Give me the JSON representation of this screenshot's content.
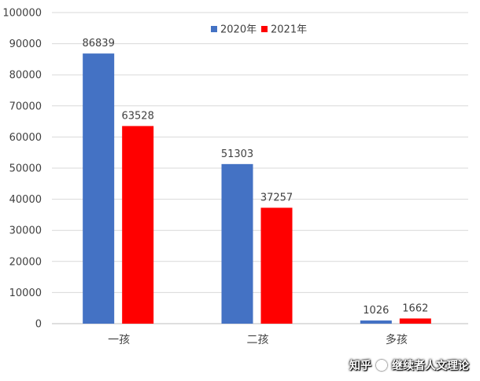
{
  "chart_data": {
    "type": "bar",
    "categories": [
      "一孩",
      "二孩",
      "多孩"
    ],
    "series": [
      {
        "name": "2020年",
        "values": [
          86839,
          51303,
          1026
        ],
        "color": "#4472C4"
      },
      {
        "name": "2021年",
        "values": [
          63528,
          37257,
          1662
        ],
        "color": "#FF0000"
      }
    ],
    "ylim": [
      0,
      100000
    ],
    "yticks": [
      "0",
      "10000",
      "20000",
      "30000",
      "40000",
      "50000",
      "60000",
      "70000",
      "80000",
      "90000",
      "100000"
    ],
    "grid": true,
    "legend": "top-center"
  },
  "watermark": {
    "brand": "知乎",
    "author": "继续者人文理论"
  }
}
